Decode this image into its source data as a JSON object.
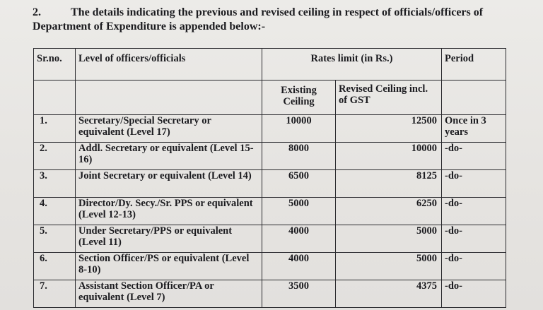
{
  "intro": {
    "number": "2.",
    "text": "The details indicating the previous and revised ceiling in respect of officials/officers of Department of Expenditure is appended below:-"
  },
  "table": {
    "headers": {
      "srno": "Sr.no.",
      "level": "Level of officers/officials",
      "rates": "Rates limit (in Rs.)",
      "period": "Period",
      "existing": "Existing Ceiling",
      "revised": "Revised Ceiling incl. of GST"
    },
    "rows": [
      {
        "sr": "1.",
        "level": "Secretary/Special Secretary or equivalent (Level 17)",
        "existing": "10000",
        "revised": "12500",
        "period": "Once in 3 years"
      },
      {
        "sr": "2.",
        "level": "Addl. Secretary or equivalent (Level 15-16)",
        "existing": "8000",
        "revised": "10000",
        "period": "-do-"
      },
      {
        "sr": "3.",
        "level": "Joint Secretary or equivalent (Level 14)",
        "existing": "6500",
        "revised": "8125",
        "period": "-do-"
      },
      {
        "sr": "4.",
        "level": "Director/Dy. Secy./Sr. PPS or equivalent (Level 12-13)",
        "existing": "5000",
        "revised": "6250",
        "period": "-do-"
      },
      {
        "sr": "5.",
        "level": "Under Secretary/PPS or equivalent (Level 11)",
        "existing": "4000",
        "revised": "5000",
        "period": "-do-"
      },
      {
        "sr": "6.",
        "level": "Section Officer/PS or equivalent (Level 8-10)",
        "existing": "4000",
        "revised": "5000",
        "period": "-do-"
      },
      {
        "sr": "7.",
        "level": "Assistant Section Officer/PA or equivalent (Level 7)",
        "existing": "3500",
        "revised": "4375",
        "period": "-do-"
      }
    ]
  }
}
